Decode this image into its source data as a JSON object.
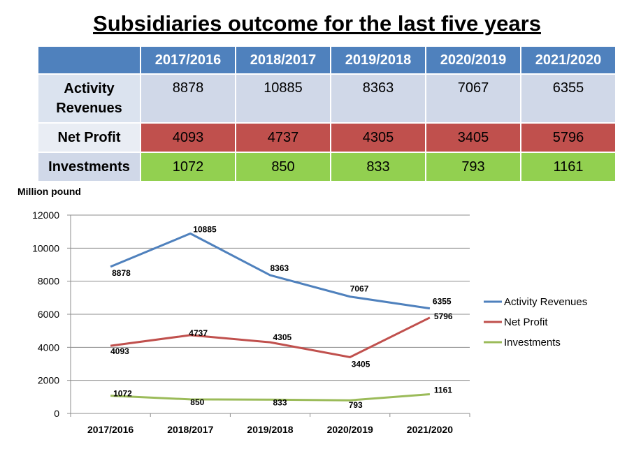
{
  "title": "Subsidiaries outcome for the last five years",
  "table": {
    "columns": [
      "2017/2016",
      "2018/2017",
      "2019/2018",
      "2020/2019",
      "2021/2020"
    ],
    "rows": [
      {
        "label_line1": "Activity",
        "label_line2": "Revenues",
        "values": [
          "8878",
          "10885",
          "8363",
          "7067",
          "6355"
        ]
      },
      {
        "label": "Net Profit",
        "values": [
          "4093",
          "4737",
          "4305",
          "3405",
          "5796"
        ]
      },
      {
        "label": "Investments",
        "values": [
          "1072",
          "850",
          "833",
          "793",
          "1161"
        ]
      }
    ]
  },
  "colors": {
    "header": "#4f81bd",
    "revenues": "#4f81bd",
    "net_profit": "#c0504d",
    "investments": "#9bbb59"
  },
  "chart_data": {
    "type": "line",
    "title": "",
    "xlabel": "",
    "ylabel": "Million pound",
    "categories": [
      "2017/2016",
      "2018/2017",
      "2019/2018",
      "2020/2019",
      "2021/2020"
    ],
    "ylim": [
      0,
      12000
    ],
    "yticks": [
      "0",
      "2000",
      "4000",
      "6000",
      "8000",
      "10000",
      "12000"
    ],
    "grid": true,
    "legend_position": "right",
    "series": [
      {
        "name": "Activity Revenues",
        "values": [
          8878,
          10885,
          8363,
          7067,
          6355
        ],
        "color": "#4f81bd",
        "labels": [
          "8878",
          "10885",
          "8363",
          "7067",
          "6355"
        ]
      },
      {
        "name": "Net Profit",
        "values": [
          4093,
          4737,
          4305,
          3405,
          5796
        ],
        "color": "#c0504d",
        "labels": [
          "4093",
          "4737",
          "4305",
          "3405",
          "5796"
        ]
      },
      {
        "name": "Investments",
        "values": [
          1072,
          850,
          833,
          793,
          1161
        ],
        "color": "#9bbb59",
        "labels": [
          "1072",
          "850",
          "833",
          "793",
          "1161"
        ]
      }
    ]
  }
}
